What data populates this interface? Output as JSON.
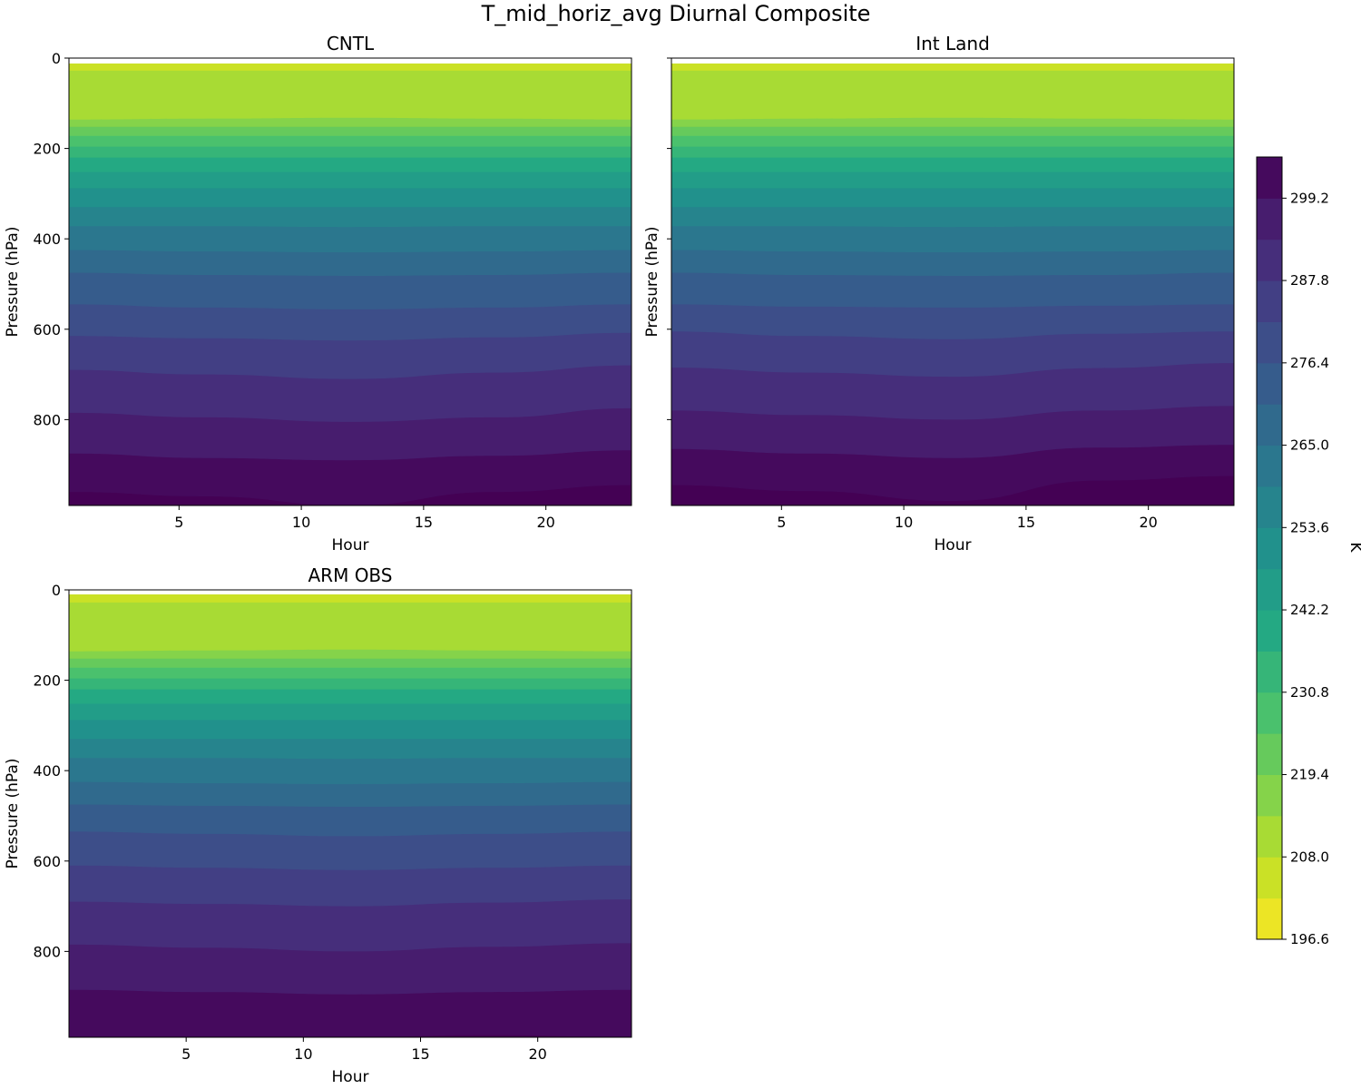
{
  "figure_title": "T_mid_horiz_avg Diurnal Composite",
  "colorbar": {
    "label": "K",
    "levels": [
      196.6,
      202.3,
      208.0,
      213.7,
      219.4,
      225.1,
      230.8,
      236.5,
      242.2,
      247.9,
      253.6,
      259.3,
      265.0,
      270.7,
      276.4,
      282.1,
      287.8,
      293.5,
      299.2,
      304.9
    ],
    "tick_values": [
      196.6,
      208.0,
      219.4,
      230.8,
      242.2,
      253.6,
      265.0,
      276.4,
      287.8,
      299.2
    ],
    "tick_labels": [
      "196.6",
      "208.0",
      "219.4",
      "230.8",
      "242.2",
      "253.6",
      "265.0",
      "276.4",
      "287.8",
      "299.2"
    ],
    "colormap": "viridis_r"
  },
  "chart_data": [
    {
      "type": "heatmap",
      "title": "CNTL",
      "xlabel": "Hour",
      "ylabel": "Pressure (hPa)",
      "xlim": [
        0.5,
        23.5
      ],
      "ylim": [
        990,
        0
      ],
      "xticks": [
        5,
        10,
        15,
        20
      ],
      "xtick_labels": [
        "5",
        "10",
        "15",
        "20"
      ],
      "yticks": [
        0,
        200,
        400,
        600,
        800
      ],
      "ytick_labels": [
        "0",
        "200",
        "400",
        "600",
        "800"
      ],
      "hours": [
        0.5,
        6,
        12,
        18,
        23.5
      ],
      "contour_boundaries_hpa": [
        {
          "level": 202.3,
          "p": [
            12,
            12,
            12,
            12,
            12
          ]
        },
        {
          "level": 208.0,
          "p": [
            28,
            28,
            28,
            28,
            28
          ]
        },
        {
          "level": 213.7,
          "p": [
            136,
            134,
            132,
            134,
            136
          ]
        },
        {
          "level": 219.4,
          "p": [
            152,
            152,
            152,
            152,
            152
          ]
        },
        {
          "level": 225.1,
          "p": [
            172,
            172,
            172,
            172,
            172
          ]
        },
        {
          "level": 230.8,
          "p": [
            196,
            196,
            196,
            196,
            196
          ]
        },
        {
          "level": 236.5,
          "p": [
            220,
            220,
            220,
            220,
            220
          ]
        },
        {
          "level": 242.2,
          "p": [
            252,
            252,
            252,
            252,
            252
          ]
        },
        {
          "level": 247.9,
          "p": [
            288,
            288,
            288,
            288,
            288
          ]
        },
        {
          "level": 253.6,
          "p": [
            330,
            330,
            330,
            330,
            330
          ]
        },
        {
          "level": 259.3,
          "p": [
            372,
            372,
            374,
            372,
            372
          ]
        },
        {
          "level": 265.0,
          "p": [
            425,
            428,
            430,
            428,
            425
          ]
        },
        {
          "level": 270.7,
          "p": [
            475,
            480,
            482,
            480,
            475
          ]
        },
        {
          "level": 276.4,
          "p": [
            545,
            552,
            556,
            552,
            545
          ]
        },
        {
          "level": 282.1,
          "p": [
            615,
            620,
            625,
            618,
            608
          ]
        },
        {
          "level": 287.8,
          "p": [
            690,
            700,
            710,
            696,
            680
          ]
        },
        {
          "level": 293.5,
          "p": [
            785,
            795,
            805,
            795,
            775
          ]
        },
        {
          "level": 299.2,
          "p": [
            875,
            885,
            890,
            880,
            868
          ]
        },
        {
          "level": 304.9,
          "p": [
            960,
            970,
            995,
            960,
            945
          ]
        }
      ]
    },
    {
      "type": "heatmap",
      "title": "Int Land",
      "xlabel": "Hour",
      "ylabel": "Pressure (hPa)",
      "xlim": [
        0.5,
        23.5
      ],
      "ylim": [
        990,
        0
      ],
      "xticks": [
        5,
        10,
        15,
        20
      ],
      "xtick_labels": [
        "5",
        "10",
        "15",
        "20"
      ],
      "yticks": [
        0,
        200,
        400,
        600,
        800
      ],
      "ytick_labels": [],
      "hours": [
        0.5,
        6,
        12,
        18,
        23.5
      ],
      "contour_boundaries_hpa": [
        {
          "level": 202.3,
          "p": [
            12,
            12,
            12,
            12,
            12
          ]
        },
        {
          "level": 208.0,
          "p": [
            28,
            28,
            28,
            28,
            28
          ]
        },
        {
          "level": 213.7,
          "p": [
            136,
            134,
            132,
            134,
            136
          ]
        },
        {
          "level": 219.4,
          "p": [
            152,
            152,
            152,
            152,
            152
          ]
        },
        {
          "level": 225.1,
          "p": [
            172,
            172,
            172,
            172,
            172
          ]
        },
        {
          "level": 230.8,
          "p": [
            196,
            196,
            196,
            196,
            196
          ]
        },
        {
          "level": 236.5,
          "p": [
            220,
            220,
            220,
            220,
            220
          ]
        },
        {
          "level": 242.2,
          "p": [
            252,
            252,
            252,
            252,
            252
          ]
        },
        {
          "level": 247.9,
          "p": [
            288,
            288,
            288,
            288,
            288
          ]
        },
        {
          "level": 253.6,
          "p": [
            330,
            330,
            330,
            330,
            330
          ]
        },
        {
          "level": 259.3,
          "p": [
            372,
            372,
            374,
            372,
            372
          ]
        },
        {
          "level": 265.0,
          "p": [
            425,
            428,
            430,
            428,
            425
          ]
        },
        {
          "level": 270.7,
          "p": [
            475,
            480,
            482,
            480,
            475
          ]
        },
        {
          "level": 276.4,
          "p": [
            545,
            550,
            552,
            548,
            545
          ]
        },
        {
          "level": 282.1,
          "p": [
            605,
            615,
            622,
            610,
            605
          ]
        },
        {
          "level": 287.8,
          "p": [
            685,
            696,
            705,
            686,
            675
          ]
        },
        {
          "level": 293.5,
          "p": [
            780,
            790,
            800,
            780,
            770
          ]
        },
        {
          "level": 299.2,
          "p": [
            865,
            875,
            885,
            862,
            856
          ]
        },
        {
          "level": 304.9,
          "p": [
            945,
            958,
            980,
            935,
            925
          ]
        }
      ]
    },
    {
      "type": "heatmap",
      "title": "ARM OBS",
      "xlabel": "Hour",
      "ylabel": "Pressure (hPa)",
      "xlim": [
        0,
        24
      ],
      "ylim": [
        990,
        0
      ],
      "xticks": [
        5,
        10,
        15,
        20
      ],
      "xtick_labels": [
        "5",
        "10",
        "15",
        "20"
      ],
      "yticks": [
        0,
        200,
        400,
        600,
        800
      ],
      "ytick_labels": [
        "0",
        "200",
        "400",
        "600",
        "800"
      ],
      "hours": [
        0,
        6,
        12,
        18,
        24
      ],
      "contour_boundaries_hpa": [
        {
          "level": 202.3,
          "p": [
            10,
            10,
            10,
            10,
            10
          ]
        },
        {
          "level": 208.0,
          "p": [
            28,
            28,
            28,
            28,
            28
          ]
        },
        {
          "level": 213.7,
          "p": [
            136,
            134,
            132,
            134,
            136
          ]
        },
        {
          "level": 219.4,
          "p": [
            152,
            152,
            152,
            152,
            152
          ]
        },
        {
          "level": 225.1,
          "p": [
            172,
            172,
            172,
            172,
            172
          ]
        },
        {
          "level": 230.8,
          "p": [
            196,
            196,
            196,
            196,
            196
          ]
        },
        {
          "level": 236.5,
          "p": [
            220,
            220,
            220,
            220,
            220
          ]
        },
        {
          "level": 242.2,
          "p": [
            252,
            252,
            252,
            252,
            252
          ]
        },
        {
          "level": 247.9,
          "p": [
            288,
            288,
            288,
            288,
            288
          ]
        },
        {
          "level": 253.6,
          "p": [
            330,
            330,
            330,
            330,
            330
          ]
        },
        {
          "level": 259.3,
          "p": [
            372,
            372,
            374,
            372,
            372
          ]
        },
        {
          "level": 265.0,
          "p": [
            425,
            428,
            430,
            428,
            425
          ]
        },
        {
          "level": 270.7,
          "p": [
            475,
            478,
            480,
            478,
            475
          ]
        },
        {
          "level": 276.4,
          "p": [
            535,
            540,
            545,
            540,
            535
          ]
        },
        {
          "level": 282.1,
          "p": [
            610,
            615,
            620,
            615,
            610
          ]
        },
        {
          "level": 287.8,
          "p": [
            690,
            695,
            700,
            692,
            685
          ]
        },
        {
          "level": 293.5,
          "p": [
            785,
            792,
            800,
            790,
            782
          ]
        },
        {
          "level": 299.2,
          "p": [
            885,
            890,
            895,
            890,
            885
          ]
        },
        {
          "level": 304.9,
          "p": [
            995,
            995,
            995,
            985,
            995
          ]
        }
      ]
    }
  ]
}
